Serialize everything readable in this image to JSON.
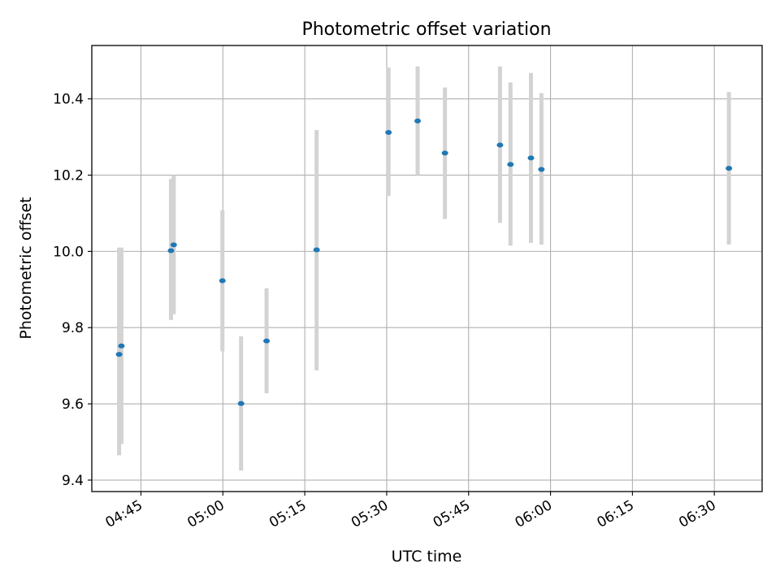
{
  "chart_data": {
    "type": "scatter",
    "title": "Photometric offset variation",
    "xlabel": "UTC time",
    "ylabel": "Photometric offset",
    "x_axis": {
      "type": "time",
      "ticks": [
        "04:45",
        "05:00",
        "05:15",
        "05:30",
        "05:45",
        "06:00",
        "06:15",
        "06:30"
      ],
      "xlim": [
        "04:36:00",
        "06:38:45"
      ]
    },
    "y_axis": {
      "ticks": [
        9.4,
        9.6,
        9.8,
        10.0,
        10.2,
        10.4
      ],
      "tick_labels": [
        "9.4",
        "9.6",
        "9.8",
        "10.0",
        "10.2",
        "10.4"
      ],
      "ylim": [
        9.37,
        10.54
      ]
    },
    "grid": true,
    "point_color": "#1f77b4",
    "errorbar_color": "#d3d3d3",
    "series": [
      {
        "points": [
          {
            "x": "04:41:00",
            "y": 9.73,
            "low": 9.465,
            "high": 10.01
          },
          {
            "x": "04:41:25",
            "y": 9.752,
            "low": 9.495,
            "high": 10.01
          },
          {
            "x": "04:50:30",
            "y": 10.002,
            "low": 9.82,
            "high": 10.19
          },
          {
            "x": "04:51:00",
            "y": 10.017,
            "low": 9.835,
            "high": 10.2
          },
          {
            "x": "04:59:55",
            "y": 9.923,
            "low": 9.738,
            "high": 10.108
          },
          {
            "x": "05:03:20",
            "y": 9.601,
            "low": 9.425,
            "high": 9.777
          },
          {
            "x": "05:08:00",
            "y": 9.765,
            "low": 9.628,
            "high": 9.903
          },
          {
            "x": "05:17:10",
            "y": 10.004,
            "low": 9.688,
            "high": 10.318
          },
          {
            "x": "05:30:20",
            "y": 10.312,
            "low": 10.145,
            "high": 10.482
          },
          {
            "x": "05:35:40",
            "y": 10.342,
            "low": 10.2,
            "high": 10.485
          },
          {
            "x": "05:40:40",
            "y": 10.258,
            "low": 10.085,
            "high": 10.43
          },
          {
            "x": "05:50:45",
            "y": 10.279,
            "low": 10.075,
            "high": 10.485
          },
          {
            "x": "05:52:40",
            "y": 10.228,
            "low": 10.015,
            "high": 10.443
          },
          {
            "x": "05:56:25",
            "y": 10.245,
            "low": 10.022,
            "high": 10.468
          },
          {
            "x": "05:58:20",
            "y": 10.215,
            "low": 10.018,
            "high": 10.415
          },
          {
            "x": "06:32:40",
            "y": 10.218,
            "low": 10.018,
            "high": 10.418
          }
        ]
      }
    ]
  }
}
